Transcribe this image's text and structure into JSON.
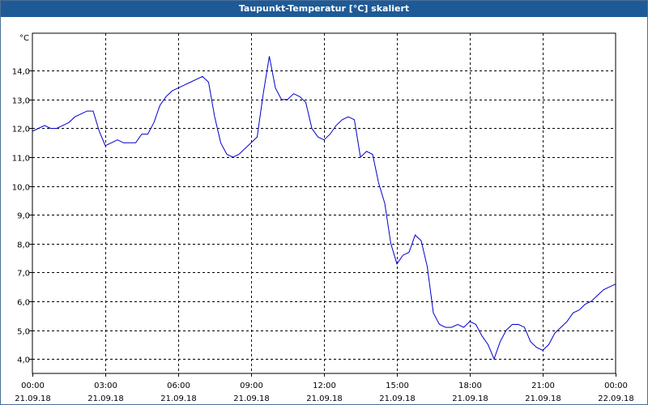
{
  "window": {
    "title": "Taupunkt-Temperatur [°C] skaliert"
  },
  "chart_data": {
    "type": "line",
    "title": "Taupunkt-Temperatur [°C] skaliert",
    "ylabel": "°C",
    "xlabel": "",
    "ylim": [
      3.5,
      15.3
    ],
    "xlim": [
      0,
      24
    ],
    "grid": true,
    "line_color": "#0000cc",
    "y_ticks": [
      {
        "value": 4,
        "label": "4,0"
      },
      {
        "value": 5,
        "label": "5,0"
      },
      {
        "value": 6,
        "label": "6,0"
      },
      {
        "value": 7,
        "label": "7,0"
      },
      {
        "value": 8,
        "label": "8,0"
      },
      {
        "value": 9,
        "label": "9,0"
      },
      {
        "value": 10,
        "label": "10,0"
      },
      {
        "value": 11,
        "label": "11,0"
      },
      {
        "value": 12,
        "label": "12,0"
      },
      {
        "value": 13,
        "label": "13,0"
      },
      {
        "value": 14,
        "label": "14,0"
      }
    ],
    "x_ticks": [
      {
        "value": 0,
        "time": "00:00",
        "date": "21.09.18"
      },
      {
        "value": 3,
        "time": "03:00",
        "date": "21.09.18"
      },
      {
        "value": 6,
        "time": "06:00",
        "date": "21.09.18"
      },
      {
        "value": 9,
        "time": "09:00",
        "date": "21.09.18"
      },
      {
        "value": 12,
        "time": "12:00",
        "date": "21.09.18"
      },
      {
        "value": 15,
        "time": "15:00",
        "date": "21.09.18"
      },
      {
        "value": 18,
        "time": "18:00",
        "date": "21.09.18"
      },
      {
        "value": 21,
        "time": "21:00",
        "date": "21.09.18"
      },
      {
        "value": 24,
        "time": "00:00",
        "date": "22.09.18"
      }
    ],
    "series": [
      {
        "x": [
          0,
          0.25,
          0.5,
          0.75,
          1.0,
          1.25,
          1.5,
          1.75,
          2.0,
          2.25,
          2.5,
          2.75,
          3.0,
          3.25,
          3.5,
          3.75,
          4.0,
          4.25,
          4.5,
          4.75,
          5.0,
          5.25,
          5.5,
          5.75,
          6.0,
          6.25,
          6.5,
          6.75,
          7.0,
          7.25,
          7.5,
          7.75,
          8.0,
          8.25,
          8.5,
          8.75,
          9.0,
          9.25,
          9.5,
          9.75,
          10.0,
          10.25,
          10.5,
          10.75,
          11.0,
          11.25,
          11.5,
          11.75,
          12.0,
          12.25,
          12.5,
          12.75,
          13.0,
          13.25,
          13.5,
          13.75,
          14.0,
          14.25,
          14.5,
          14.75,
          15.0,
          15.25,
          15.5,
          15.75,
          16.0,
          16.25,
          16.5,
          16.75,
          17.0,
          17.25,
          17.5,
          17.75,
          18.0,
          18.25,
          18.5,
          18.75,
          19.0,
          19.25,
          19.5,
          19.75,
          20.0,
          20.25,
          20.5,
          20.75,
          21.0,
          21.25,
          21.5,
          21.75,
          22.0,
          22.25,
          22.5,
          22.75,
          23.0,
          23.25,
          23.5,
          23.75,
          24.0
        ],
        "y": [
          11.9,
          12.0,
          12.1,
          12.0,
          12.0,
          12.1,
          12.2,
          12.4,
          12.5,
          12.6,
          12.6,
          11.9,
          11.4,
          11.5,
          11.6,
          11.5,
          11.5,
          11.5,
          11.8,
          11.8,
          12.2,
          12.8,
          13.1,
          13.3,
          13.4,
          13.5,
          13.6,
          13.7,
          13.8,
          13.6,
          12.4,
          11.5,
          11.1,
          11.0,
          11.1,
          11.3,
          11.5,
          11.7,
          13.2,
          14.5,
          13.4,
          13.0,
          13.0,
          13.2,
          13.1,
          12.9,
          12.0,
          11.7,
          11.6,
          11.8,
          12.1,
          12.3,
          12.4,
          12.3,
          11.0,
          11.2,
          11.1,
          10.1,
          9.4,
          8.0,
          7.3,
          7.6,
          7.7,
          8.3,
          8.1,
          7.2,
          5.6,
          5.2,
          5.1,
          5.1,
          5.2,
          5.1,
          5.3,
          5.2,
          4.8,
          4.5,
          4.0,
          4.6,
          5.0,
          5.2,
          5.2,
          5.1,
          4.6,
          4.4,
          4.3,
          4.5,
          4.9,
          5.1,
          5.3,
          5.6,
          5.7,
          5.9,
          6.0,
          6.2,
          6.4,
          6.5,
          6.6
        ]
      }
    ]
  }
}
